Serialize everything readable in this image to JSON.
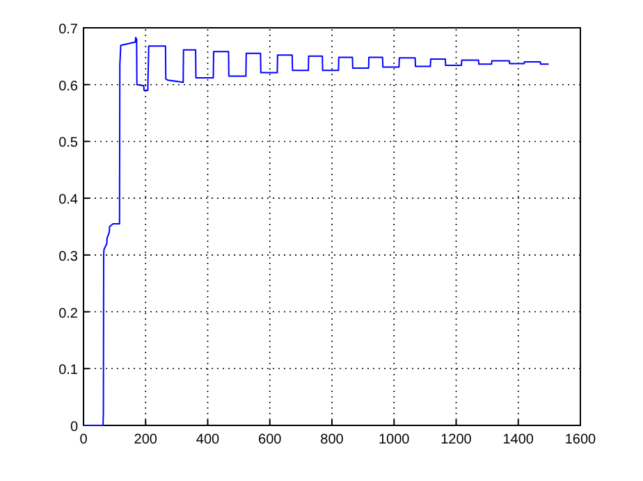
{
  "chart_data": {
    "type": "line",
    "xlim": [
      0,
      1600
    ],
    "ylim": [
      0,
      0.7
    ],
    "xticks": [
      0,
      200,
      400,
      600,
      800,
      1000,
      1200,
      1400,
      1600
    ],
    "yticks": [
      0,
      0.1,
      0.2,
      0.3,
      0.4,
      0.5,
      0.6,
      0.7
    ],
    "grid": true,
    "line_style": "solid",
    "marker": "none",
    "series": [
      {
        "color": "#0000ff",
        "x": [
          0,
          63,
          64,
          65,
          66,
          75,
          76,
          83,
          84,
          95,
          96,
          116,
          117,
          120,
          167,
          168,
          171,
          172,
          194,
          195,
          207,
          210,
          264,
          265,
          271,
          321,
          322,
          361,
          362,
          418,
          419,
          467,
          468,
          523,
          524,
          570,
          571,
          624,
          625,
          672,
          673,
          724,
          725,
          769,
          770,
          821,
          822,
          866,
          867,
          918,
          919,
          963,
          964,
          1016,
          1017,
          1068,
          1069,
          1117,
          1118,
          1165,
          1166,
          1217,
          1218,
          1272,
          1273,
          1314,
          1315,
          1371,
          1372,
          1419,
          1420,
          1471,
          1472,
          1498
        ],
        "values": [
          0,
          0,
          0.024,
          0.3,
          0.31,
          0.32,
          0.33,
          0.34,
          0.35,
          0.355,
          0.355,
          0.355,
          0.635,
          0.669,
          0.675,
          0.683,
          0.68,
          0.6,
          0.598,
          0.59,
          0.59,
          0.668,
          0.668,
          0.61,
          0.608,
          0.604,
          0.661,
          0.661,
          0.612,
          0.612,
          0.658,
          0.658,
          0.615,
          0.615,
          0.655,
          0.655,
          0.621,
          0.621,
          0.652,
          0.652,
          0.625,
          0.625,
          0.65,
          0.65,
          0.625,
          0.625,
          0.648,
          0.648,
          0.629,
          0.629,
          0.648,
          0.648,
          0.631,
          0.631,
          0.647,
          0.647,
          0.632,
          0.632,
          0.645,
          0.645,
          0.634,
          0.634,
          0.643,
          0.643,
          0.636,
          0.636,
          0.642,
          0.642,
          0.637,
          0.637,
          0.64,
          0.64,
          0.636,
          0.636
        ]
      }
    ]
  }
}
